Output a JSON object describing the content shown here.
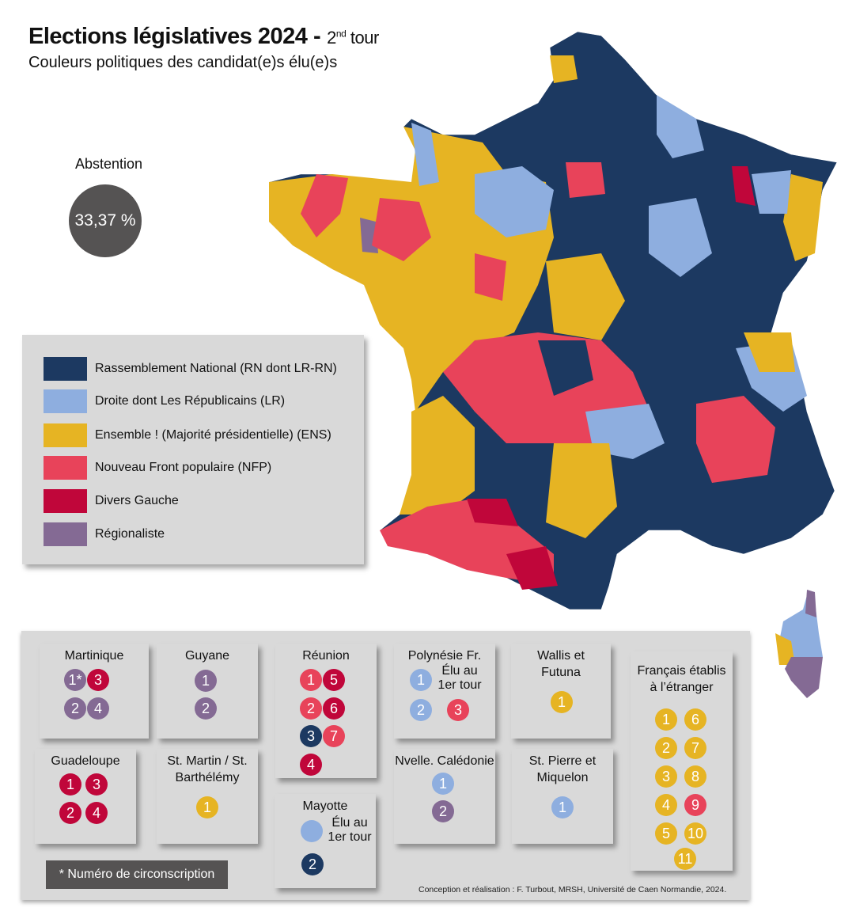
{
  "title": {
    "main": "Elections législatives 2024 -",
    "tour_num": "2",
    "tour_sup": "nd",
    "tour_word": "tour",
    "subtitle": "Couleurs politiques des candidat(e)s élu(e)s"
  },
  "abstention": {
    "label": "Abstention",
    "value": "33,37 %"
  },
  "colors": {
    "RN": "#1c3961",
    "LR": "#8eaedf",
    "ENS": "#e6b423",
    "NFP": "#e8435a",
    "DVG": "#c0063a",
    "REG": "#846a94"
  },
  "legend": [
    {
      "key": "RN",
      "label": "Rassemblement National (RN dont LR-RN)"
    },
    {
      "key": "LR",
      "label": "Droite dont Les Républicains (LR)"
    },
    {
      "key": "ENS",
      "label": "Ensemble ! (Majorité présidentielle) (ENS)"
    },
    {
      "key": "NFP",
      "label": "Nouveau Front populaire (NFP)"
    },
    {
      "key": "DVG",
      "label": "Divers Gauche"
    },
    {
      "key": "REG",
      "label": "Régionaliste"
    }
  ],
  "territories": [
    {
      "name": "Martinique",
      "seats": [
        {
          "n": "1*",
          "p": "REG"
        },
        {
          "n": "3",
          "p": "DVG"
        },
        {
          "n": "2",
          "p": "REG"
        },
        {
          "n": "4",
          "p": "REG"
        }
      ]
    },
    {
      "name": "Guyane",
      "seats": [
        {
          "n": "1",
          "p": "REG"
        },
        {
          "n": "2",
          "p": "REG"
        }
      ]
    },
    {
      "name": "Réunion",
      "seats": [
        {
          "n": "1",
          "p": "NFP"
        },
        {
          "n": "5",
          "p": "DVG"
        },
        {
          "n": "2",
          "p": "NFP"
        },
        {
          "n": "6",
          "p": "DVG"
        },
        {
          "n": "3",
          "p": "RN"
        },
        {
          "n": "7",
          "p": "NFP"
        },
        {
          "n": "4",
          "p": "DVG"
        }
      ]
    },
    {
      "name": "Polynésie Fr.",
      "seats": [
        {
          "n": "1",
          "p": "LR",
          "note": "Élu au 1er tour"
        },
        {
          "n": "2",
          "p": "LR"
        },
        {
          "n": "3",
          "p": "NFP"
        }
      ]
    },
    {
      "name": "Wallis et Futuna",
      "seats": [
        {
          "n": "1",
          "p": "ENS"
        }
      ]
    },
    {
      "name": "Français établis à l’étranger",
      "seats": [
        {
          "n": "1",
          "p": "ENS"
        },
        {
          "n": "6",
          "p": "ENS"
        },
        {
          "n": "2",
          "p": "ENS"
        },
        {
          "n": "7",
          "p": "ENS"
        },
        {
          "n": "3",
          "p": "ENS"
        },
        {
          "n": "8",
          "p": "ENS"
        },
        {
          "n": "4",
          "p": "ENS"
        },
        {
          "n": "9",
          "p": "NFP"
        },
        {
          "n": "5",
          "p": "ENS"
        },
        {
          "n": "10",
          "p": "ENS"
        },
        {
          "n": "11",
          "p": "ENS"
        }
      ]
    },
    {
      "name": "Guadeloupe",
      "seats": [
        {
          "n": "1",
          "p": "DVG"
        },
        {
          "n": "3",
          "p": "DVG"
        },
        {
          "n": "2",
          "p": "DVG"
        },
        {
          "n": "4",
          "p": "DVG"
        }
      ]
    },
    {
      "name": "St. Martin / St. Barthélémy",
      "seats": [
        {
          "n": "1",
          "p": "ENS"
        }
      ]
    },
    {
      "name": "Mayotte",
      "seats": [
        {
          "n": "",
          "p": "LR",
          "note": "Élu au 1er tour"
        },
        {
          "n": "2",
          "p": "RN"
        }
      ]
    },
    {
      "name": "Nvelle. Calédonie",
      "seats": [
        {
          "n": "1",
          "p": "LR"
        },
        {
          "n": "2",
          "p": "REG"
        }
      ]
    },
    {
      "name": "St. Pierre et Miquelon",
      "seats": [
        {
          "n": "1",
          "p": "LR"
        }
      ]
    }
  ],
  "footnote": "*  Numéro de circonscription",
  "credit": "Conception et réalisation : F. Turbout, MRSH, Université de Caen Normandie, 2024."
}
